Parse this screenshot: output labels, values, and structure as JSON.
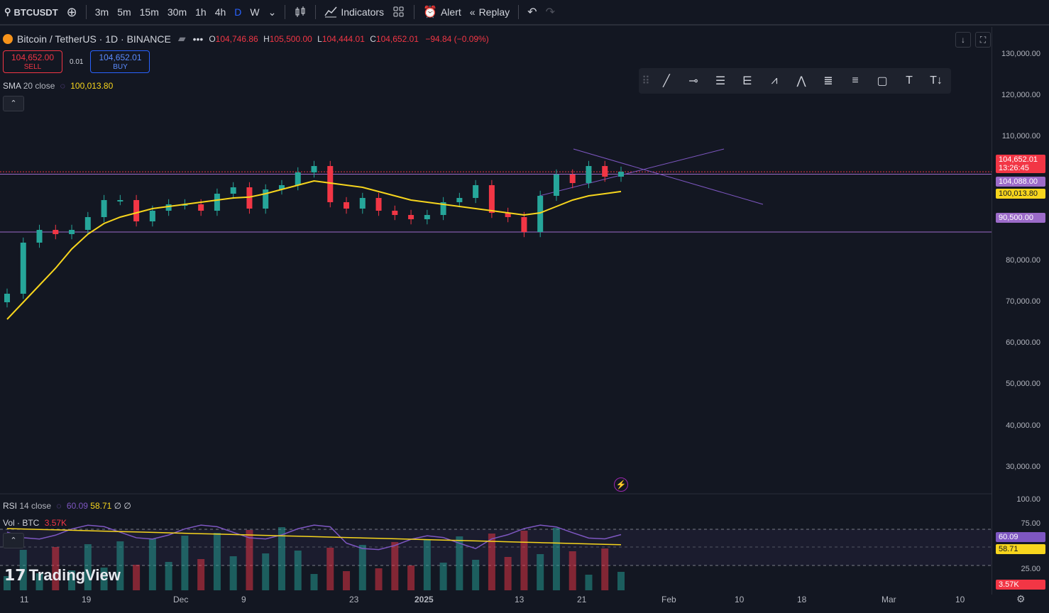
{
  "toolbar": {
    "symbol": "BTCUSDT",
    "intervals": [
      "3m",
      "5m",
      "15m",
      "30m",
      "1h",
      "4h",
      "D",
      "W"
    ],
    "active_interval": "D",
    "indicators_label": "Indicators",
    "alert_label": "Alert",
    "replay_label": "Replay"
  },
  "legend": {
    "title": "Bitcoin / TetherUS · 1D · BINANCE",
    "o_key": "O",
    "o": "104,746.86",
    "h_key": "H",
    "h": "105,500.00",
    "l_key": "L",
    "l": "104,444.01",
    "c_key": "C",
    "c": "104,652.01",
    "change": "−94.84 (−0.09%)"
  },
  "trade": {
    "sell_price": "104,652.00",
    "sell_label": "SELL",
    "qty": "0.01",
    "buy_price": "104,652.01",
    "buy_label": "BUY"
  },
  "sma": {
    "name": "SMA",
    "params": "20 close",
    "value": "100,013.80"
  },
  "price_axis": [
    "130,000.00",
    "120,000.00",
    "110,000.00",
    "80,000.00",
    "70,000.00",
    "60,000.00",
    "50,000.00",
    "40,000.00",
    "30,000.00"
  ],
  "price_tags": {
    "last": "104,652.01",
    "countdown": "13:26:45",
    "level1": "104,088.00",
    "sma": "100,013.80",
    "support": "90,500.00"
  },
  "rsi": {
    "name": "RSI",
    "params": "14 close",
    "v1": "60.09",
    "v2": "58.71",
    "extra": "∅ ∅"
  },
  "vol": {
    "name": "Vol · BTC",
    "value": "3.57K"
  },
  "rsi_axis": [
    "100.00",
    "75.00",
    "25.00"
  ],
  "rsi_tags": {
    "v1": "60.09",
    "v2": "58.71",
    "vol": "3.57K"
  },
  "time_axis": [
    "11",
    "19",
    "Dec",
    "9",
    "23",
    "2025",
    "13",
    "21",
    "Feb",
    "10",
    "18",
    "Mar",
    "10"
  ],
  "branding": "TradingView",
  "colors": {
    "up": "#26a69a",
    "down": "#f23645",
    "sma": "#f7d51d",
    "line": "#9c27b0"
  },
  "chart_data": {
    "type": "candlestick",
    "ylim": [
      30000,
      135000
    ],
    "x": [
      "Nov 10",
      "Nov 12",
      "Nov 14",
      "Nov 16",
      "Nov 18",
      "Nov 20",
      "Nov 22",
      "Nov 24",
      "Nov 26",
      "Nov 28",
      "Nov 30",
      "Dec 2",
      "Dec 4",
      "Dec 6",
      "Dec 8",
      "Dec 10",
      "Dec 12",
      "Dec 14",
      "Dec 16",
      "Dec 18",
      "Dec 20",
      "Dec 22",
      "Dec 24",
      "Dec 26",
      "Dec 28",
      "Dec 30",
      "Jan 1",
      "Jan 3",
      "Jan 5",
      "Jan 7",
      "Jan 9",
      "Jan 11",
      "Jan 13",
      "Jan 15",
      "Jan 17",
      "Jan 19",
      "Jan 21",
      "Jan 23",
      "Jan 25"
    ],
    "close": [
      76000,
      88000,
      91000,
      90000,
      91000,
      94000,
      98000,
      98000,
      93000,
      95500,
      97000,
      97000,
      95500,
      99500,
      101000,
      96000,
      100500,
      101500,
      104500,
      106000,
      97500,
      96000,
      98500,
      95500,
      94500,
      93500,
      94500,
      97500,
      98500,
      101500,
      95000,
      94000,
      90500,
      99000,
      104000,
      102000,
      106000,
      103500,
      104652
    ],
    "sma": [
      70000,
      74000,
      78000,
      82000,
      86500,
      90000,
      92500,
      94000,
      95000,
      96000,
      96500,
      97000,
      97500,
      98000,
      98500,
      98700,
      99500,
      100500,
      101500,
      102500,
      102000,
      101500,
      101000,
      100000,
      99000,
      98000,
      97500,
      97000,
      96500,
      96000,
      95500,
      95000,
      94500,
      95000,
      96500,
      98000,
      99000,
      99500,
      100013
    ]
  }
}
